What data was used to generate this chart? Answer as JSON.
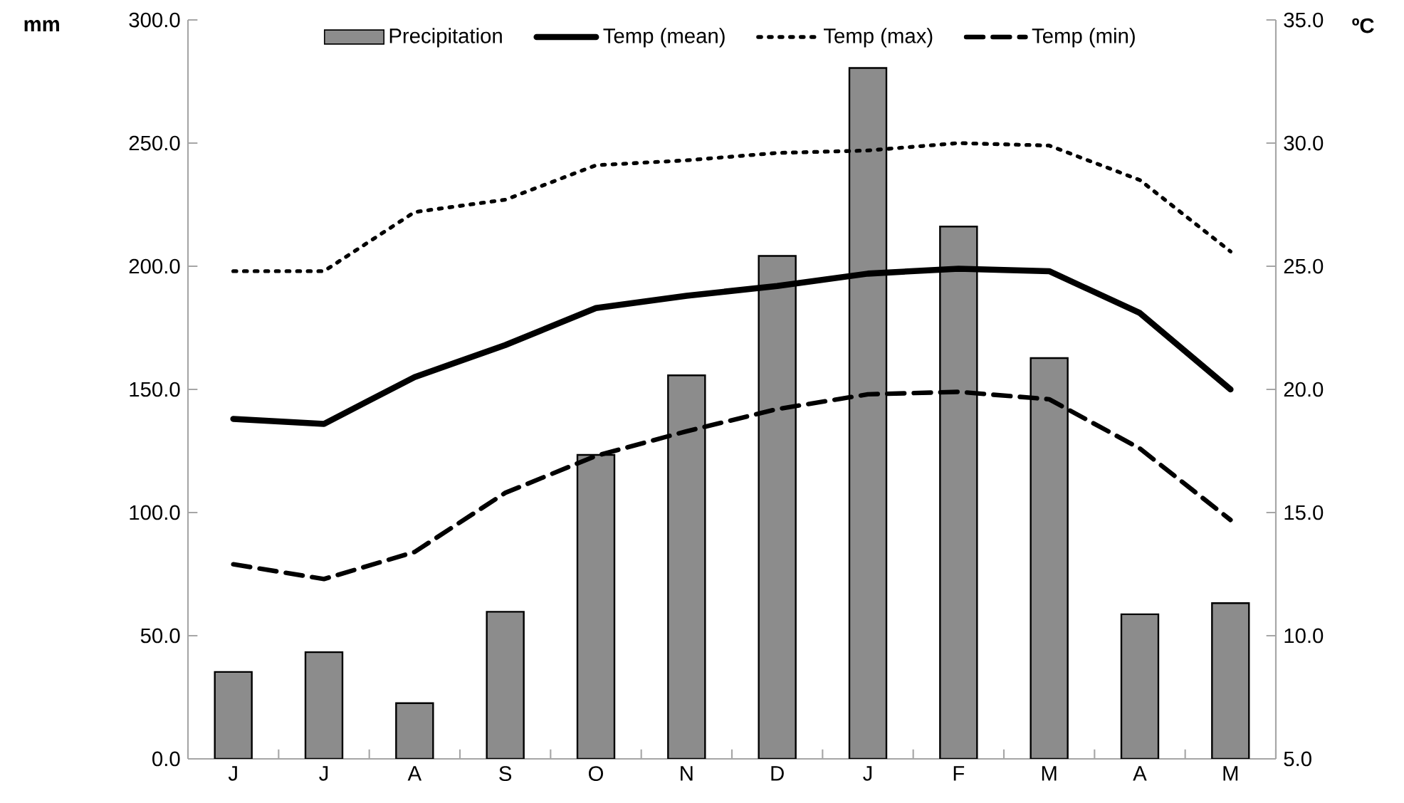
{
  "chart_data": {
    "type": "bar",
    "ylabel": "mm",
    "y2label": "ºC",
    "legend": "top",
    "categories": [
      "J",
      "J",
      "A",
      "S",
      "O",
      "N",
      "D",
      "J",
      "F",
      "M",
      "A",
      "M"
    ],
    "ylim": [
      0,
      300
    ],
    "yticks": [
      {
        "value": 0,
        "label": "0.0"
      },
      {
        "value": 50,
        "label": "50.0"
      },
      {
        "value": 100,
        "label": "100.0"
      },
      {
        "value": 150,
        "label": "150.0"
      },
      {
        "value": 200,
        "label": "200.0"
      },
      {
        "value": 250,
        "label": "250.0"
      },
      {
        "value": 300,
        "label": "300.0"
      }
    ],
    "y2lim": [
      5,
      35
    ],
    "y2ticks": [
      {
        "value": 5,
        "label": "5.0"
      },
      {
        "value": 10,
        "label": "10.0"
      },
      {
        "value": 15,
        "label": "15.0"
      },
      {
        "value": 20,
        "label": "20.0"
      },
      {
        "value": 25,
        "label": "25.0"
      },
      {
        "value": 30,
        "label": "30.0"
      },
      {
        "value": 35,
        "label": "35.0"
      }
    ],
    "series": [
      {
        "name": "Precipitation",
        "color": "#8c8c8c",
        "values": [
          35.3,
          43.3,
          22.6,
          59.7,
          123.4,
          155.7,
          204.2,
          280.5,
          216.1,
          162.7,
          58.7,
          63.2
        ]
      },
      {
        "name": "Temp (mean)",
        "type": "line",
        "axis": "y2",
        "color": "#000000",
        "line_style": "solid",
        "values": [
          18.8,
          18.6,
          20.5,
          21.8,
          23.3,
          23.8,
          24.2,
          24.7,
          24.9,
          24.8,
          23.1,
          20.0
        ]
      },
      {
        "name": "Temp (max)",
        "type": "line",
        "axis": "y2",
        "color": "#000000",
        "line_style": "dotted",
        "values": [
          24.8,
          24.8,
          27.2,
          27.7,
          29.1,
          29.3,
          29.6,
          29.7,
          30.0,
          29.9,
          28.5,
          25.6
        ]
      },
      {
        "name": "Temp (min)",
        "type": "line",
        "axis": "y2",
        "color": "#000000",
        "line_style": "dashed",
        "values": [
          12.9,
          12.3,
          13.4,
          15.8,
          17.3,
          18.3,
          19.2,
          19.8,
          19.9,
          19.6,
          17.6,
          14.7
        ]
      }
    ]
  }
}
